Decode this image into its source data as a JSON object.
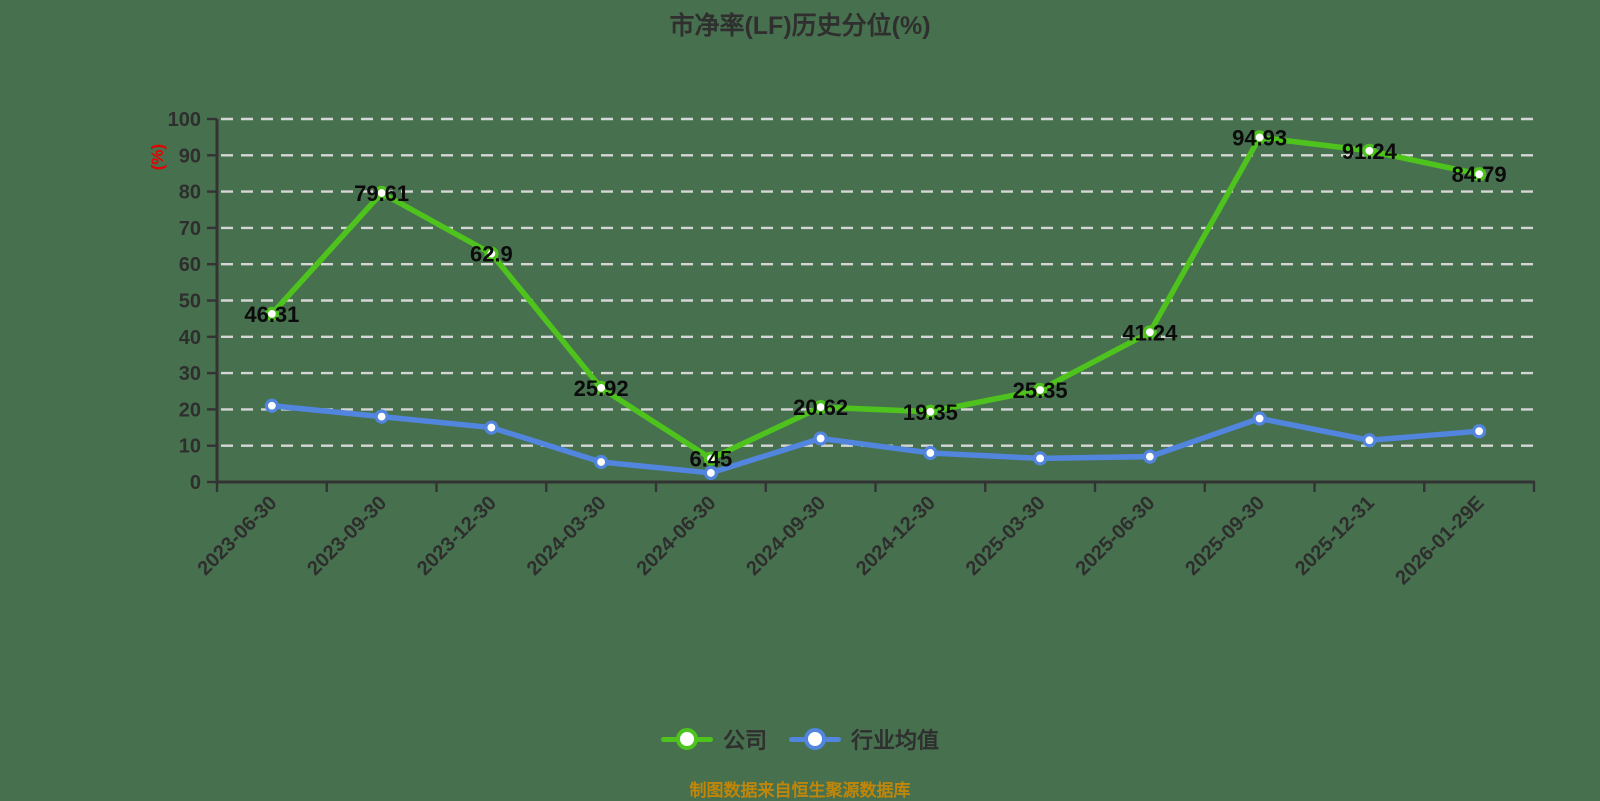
{
  "title": "市净率(LF)历史分位(%)",
  "y_axis_label": "(%)",
  "source_note": "制图数据来自恒生聚源数据库",
  "colors": {
    "background": "#47704e",
    "axis": "#333333",
    "tick_text": "#2e2e2e",
    "grid": "#d6d6d6",
    "company": "#4fc31d",
    "industry": "#5285dd",
    "value_label": "#0b0b0b",
    "unit_label": "#e60000",
    "source_text": "#bf8609",
    "marker_fill": "#ffffff"
  },
  "chart_data": {
    "type": "line",
    "title": "市净率(LF)历史分位(%)",
    "ylabel": "(%)",
    "xlabel": "",
    "ylim": [
      0,
      100
    ],
    "y_ticks": [
      0,
      10,
      20,
      30,
      40,
      50,
      60,
      70,
      80,
      90,
      100
    ],
    "grid": "horizontal-dashed",
    "legend_position": "bottom",
    "categories": [
      "2023-06-30",
      "2023-09-30",
      "2023-12-30",
      "2024-03-30",
      "2024-06-30",
      "2024-09-30",
      "2024-12-30",
      "2025-03-30",
      "2025-06-30",
      "2025-09-30",
      "2025-12-31",
      "2026-01-29E"
    ],
    "series": [
      {
        "name": "公司",
        "color_key": "company",
        "show_value_labels": true,
        "values": [
          46.31,
          79.61,
          62.9,
          25.92,
          6.45,
          20.62,
          19.35,
          25.35,
          41.24,
          94.93,
          91.24,
          84.79
        ]
      },
      {
        "name": "行业均值",
        "color_key": "industry",
        "show_value_labels": false,
        "values": [
          21,
          18,
          15,
          5.5,
          2.5,
          12,
          8,
          6.5,
          7,
          17.5,
          11.5,
          14
        ]
      }
    ]
  }
}
